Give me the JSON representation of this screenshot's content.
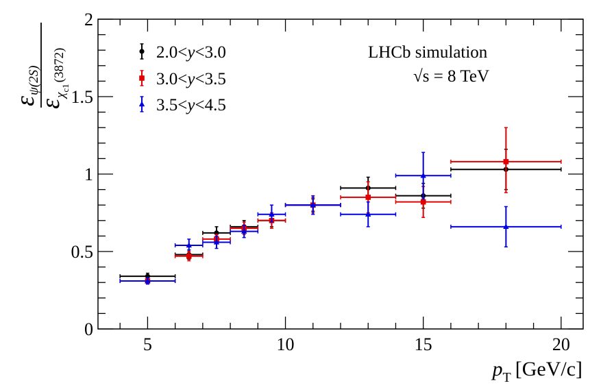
{
  "chart_data": {
    "type": "scatter",
    "xlabel": {
      "symbol": "p",
      "subscript": "T",
      "unit": "[GeV/c]"
    },
    "ylabel": {
      "numerator": "ε",
      "numerator_sub": "ψ(2S)",
      "denominator": "ε",
      "denominator_sub": "χ",
      "denominator_sub2": "c1",
      "denominator_sub3": "(3872)"
    },
    "xlim": [
      3.2,
      20.8
    ],
    "ylim": [
      0,
      2
    ],
    "x_ticks": [
      5,
      10,
      15,
      20
    ],
    "x_tick_labels": [
      "5",
      "10",
      "15",
      "20"
    ],
    "y_ticks": [
      0,
      0.5,
      1,
      1.5,
      2
    ],
    "y_tick_labels": [
      "0",
      "0.5",
      "1",
      "1.5",
      "2"
    ],
    "annotation": {
      "line1": "LHCb simulation",
      "line2": "√s = 8 TeV"
    },
    "legend_position": "top-left",
    "series": [
      {
        "name": "2.0<y<3.0",
        "label_prefix": "2.0<",
        "label_var": "y",
        "label_suffix": "<3.0",
        "color": "#000000",
        "marker": "circle",
        "points": [
          {
            "x": 5.0,
            "y": 0.34,
            "xlo": 4,
            "xhi": 6,
            "ylo": 0.32,
            "yhi": 0.36
          },
          {
            "x": 6.5,
            "y": 0.48,
            "xlo": 6,
            "xhi": 7,
            "ylo": 0.45,
            "yhi": 0.51
          },
          {
            "x": 7.5,
            "y": 0.62,
            "xlo": 7,
            "xhi": 8,
            "ylo": 0.58,
            "yhi": 0.66
          },
          {
            "x": 8.5,
            "y": 0.66,
            "xlo": 8,
            "xhi": 9,
            "ylo": 0.62,
            "yhi": 0.7
          },
          {
            "x": 9.5,
            "y": 0.7,
            "xlo": 9,
            "xhi": 10,
            "ylo": 0.66,
            "yhi": 0.74
          },
          {
            "x": 11.0,
            "y": 0.8,
            "xlo": 10,
            "xhi": 12,
            "ylo": 0.76,
            "yhi": 0.84
          },
          {
            "x": 13.0,
            "y": 0.91,
            "xlo": 12,
            "xhi": 14,
            "ylo": 0.84,
            "yhi": 0.98
          },
          {
            "x": 15.0,
            "y": 0.86,
            "xlo": 14,
            "xhi": 16,
            "ylo": 0.78,
            "yhi": 0.94
          },
          {
            "x": 18.0,
            "y": 1.03,
            "xlo": 16,
            "xhi": 20,
            "ylo": 0.9,
            "yhi": 1.16
          }
        ]
      },
      {
        "name": "3.0<y<3.5",
        "label_prefix": "3.0<",
        "label_var": "y",
        "label_suffix": "<3.5",
        "color": "#e00000",
        "marker": "square",
        "points": [
          {
            "x": 5.0,
            "y": 0.31,
            "xlo": 4,
            "xhi": 6,
            "ylo": 0.29,
            "yhi": 0.33
          },
          {
            "x": 6.5,
            "y": 0.47,
            "xlo": 6,
            "xhi": 7,
            "ylo": 0.44,
            "yhi": 0.5
          },
          {
            "x": 7.5,
            "y": 0.58,
            "xlo": 7,
            "xhi": 8,
            "ylo": 0.55,
            "yhi": 0.61
          },
          {
            "x": 8.5,
            "y": 0.65,
            "xlo": 8,
            "xhi": 9,
            "ylo": 0.61,
            "yhi": 0.69
          },
          {
            "x": 9.5,
            "y": 0.7,
            "xlo": 9,
            "xhi": 10,
            "ylo": 0.65,
            "yhi": 0.75
          },
          {
            "x": 11.0,
            "y": 0.8,
            "xlo": 10,
            "xhi": 12,
            "ylo": 0.75,
            "yhi": 0.85
          },
          {
            "x": 13.0,
            "y": 0.85,
            "xlo": 12,
            "xhi": 14,
            "ylo": 0.75,
            "yhi": 0.95
          },
          {
            "x": 15.0,
            "y": 0.82,
            "xlo": 14,
            "xhi": 16,
            "ylo": 0.72,
            "yhi": 0.92
          },
          {
            "x": 18.0,
            "y": 1.08,
            "xlo": 16,
            "xhi": 20,
            "ylo": 0.88,
            "yhi": 1.3
          }
        ]
      },
      {
        "name": "3.5<y<4.5",
        "label_prefix": "3.5<",
        "label_var": "y",
        "label_suffix": "<4.5",
        "color": "#0000e0",
        "marker": "triangle",
        "points": [
          {
            "x": 5.0,
            "y": 0.31,
            "xlo": 4,
            "xhi": 6,
            "ylo": 0.29,
            "yhi": 0.33
          },
          {
            "x": 6.5,
            "y": 0.54,
            "xlo": 6,
            "xhi": 7,
            "ylo": 0.51,
            "yhi": 0.58
          },
          {
            "x": 7.5,
            "y": 0.56,
            "xlo": 7,
            "xhi": 8,
            "ylo": 0.52,
            "yhi": 0.6
          },
          {
            "x": 8.5,
            "y": 0.63,
            "xlo": 8,
            "xhi": 9,
            "ylo": 0.59,
            "yhi": 0.67
          },
          {
            "x": 9.5,
            "y": 0.74,
            "xlo": 9,
            "xhi": 10,
            "ylo": 0.69,
            "yhi": 0.8
          },
          {
            "x": 11.0,
            "y": 0.8,
            "xlo": 10,
            "xhi": 12,
            "ylo": 0.74,
            "yhi": 0.86
          },
          {
            "x": 13.0,
            "y": 0.74,
            "xlo": 12,
            "xhi": 14,
            "ylo": 0.66,
            "yhi": 0.82
          },
          {
            "x": 15.0,
            "y": 0.99,
            "xlo": 14,
            "xhi": 16,
            "ylo": 0.84,
            "yhi": 1.14
          },
          {
            "x": 18.0,
            "y": 0.66,
            "xlo": 16,
            "xhi": 20,
            "ylo": 0.53,
            "yhi": 0.79
          }
        ]
      }
    ]
  }
}
